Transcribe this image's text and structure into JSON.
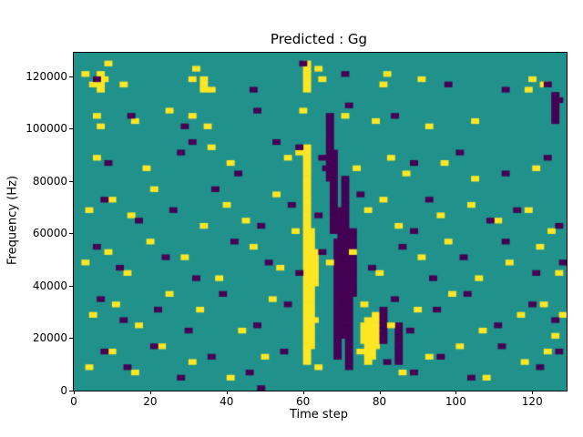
{
  "chart_data": {
    "type": "heatmap",
    "title": "Predicted : Gg",
    "xlabel": "Time step",
    "ylabel": "Frequency (Hz)",
    "xlim": [
      0,
      129
    ],
    "ylim": [
      0,
      129000
    ],
    "x_ticks": [
      0,
      20,
      40,
      60,
      80,
      100,
      120
    ],
    "y_ticks": [
      0,
      20000,
      40000,
      60000,
      80000,
      100000,
      120000
    ],
    "grid": {
      "time_steps": 128,
      "freq_bins": 64,
      "bin_hz": 2000
    },
    "legend": "none",
    "colors": {
      "background": "#21918c",
      "high": "#fde725",
      "low": "#440154"
    },
    "cell": {
      "dx": 2,
      "dy": 2000
    },
    "yellow_runs": [
      [
        60,
        5,
        46
      ],
      [
        61,
        8,
        30
      ],
      [
        60,
        57,
        62
      ],
      [
        62,
        20,
        26
      ],
      [
        75,
        9,
        12
      ],
      [
        76,
        5,
        13
      ],
      [
        77,
        6,
        12
      ],
      [
        78,
        8,
        14
      ],
      [
        33,
        57,
        59
      ],
      [
        6,
        57,
        60
      ]
    ],
    "purple_runs": [
      [
        68,
        6,
        28
      ],
      [
        69,
        10,
        34
      ],
      [
        70,
        15,
        40
      ],
      [
        67,
        30,
        45
      ],
      [
        71,
        4,
        20
      ],
      [
        72,
        18,
        30
      ],
      [
        66,
        40,
        52
      ],
      [
        84,
        5,
        12
      ],
      [
        80,
        9,
        15
      ],
      [
        125,
        52,
        56
      ]
    ],
    "yellow_cells": [
      [
        2,
        60
      ],
      [
        4,
        58
      ],
      [
        7,
        59
      ],
      [
        8,
        62
      ],
      [
        12,
        58
      ],
      [
        30,
        59
      ],
      [
        31,
        61
      ],
      [
        35,
        57
      ],
      [
        63,
        61
      ],
      [
        64,
        59
      ],
      [
        80,
        58
      ],
      [
        81,
        60
      ],
      [
        90,
        59
      ],
      [
        118,
        57
      ],
      [
        119,
        59
      ],
      [
        122,
        58
      ],
      [
        5,
        52
      ],
      [
        6,
        50
      ],
      [
        15,
        51
      ],
      [
        24,
        53
      ],
      [
        30,
        52
      ],
      [
        34,
        50
      ],
      [
        59,
        53
      ],
      [
        70,
        52
      ],
      [
        78,
        51
      ],
      [
        92,
        50
      ],
      [
        104,
        51
      ],
      [
        5,
        44
      ],
      [
        18,
        42
      ],
      [
        35,
        46
      ],
      [
        40,
        43
      ],
      [
        55,
        44
      ],
      [
        58,
        45
      ],
      [
        73,
        42
      ],
      [
        82,
        44
      ],
      [
        86,
        41
      ],
      [
        96,
        43
      ],
      [
        104,
        40
      ],
      [
        120,
        42
      ],
      [
        3,
        34
      ],
      [
        9,
        36
      ],
      [
        14,
        33
      ],
      [
        20,
        38
      ],
      [
        33,
        31
      ],
      [
        39,
        35
      ],
      [
        44,
        32
      ],
      [
        52,
        37
      ],
      [
        57,
        30
      ],
      [
        76,
        34
      ],
      [
        80,
        36
      ],
      [
        84,
        31
      ],
      [
        95,
        33
      ],
      [
        103,
        35
      ],
      [
        110,
        32
      ],
      [
        118,
        34
      ],
      [
        124,
        30
      ],
      [
        2,
        24
      ],
      [
        8,
        26
      ],
      [
        13,
        22
      ],
      [
        19,
        28
      ],
      [
        28,
        25
      ],
      [
        37,
        21
      ],
      [
        46,
        27
      ],
      [
        53,
        23
      ],
      [
        66,
        24
      ],
      [
        72,
        26
      ],
      [
        79,
        22
      ],
      [
        90,
        25
      ],
      [
        97,
        28
      ],
      [
        105,
        21
      ],
      [
        113,
        24
      ],
      [
        121,
        27
      ],
      [
        126,
        22
      ],
      [
        4,
        14
      ],
      [
        10,
        16
      ],
      [
        16,
        12
      ],
      [
        24,
        18
      ],
      [
        32,
        15
      ],
      [
        43,
        11
      ],
      [
        51,
        17
      ],
      [
        62,
        13
      ],
      [
        75,
        16
      ],
      [
        82,
        12
      ],
      [
        89,
        15
      ],
      [
        98,
        18
      ],
      [
        106,
        11
      ],
      [
        116,
        14
      ],
      [
        122,
        16
      ],
      [
        125,
        10
      ],
      [
        127,
        14
      ],
      [
        3,
        4
      ],
      [
        9,
        7
      ],
      [
        15,
        3
      ],
      [
        22,
        8
      ],
      [
        30,
        5
      ],
      [
        40,
        2
      ],
      [
        49,
        6
      ],
      [
        63,
        4
      ],
      [
        74,
        7
      ],
      [
        85,
        3
      ],
      [
        92,
        6
      ],
      [
        100,
        8
      ],
      [
        107,
        2
      ],
      [
        117,
        5
      ],
      [
        123,
        7
      ]
    ],
    "purple_cells": [
      [
        5,
        59
      ],
      [
        59,
        62
      ],
      [
        70,
        60
      ],
      [
        97,
        58
      ],
      [
        112,
        57
      ],
      [
        123,
        58
      ],
      [
        126,
        55
      ],
      [
        14,
        52
      ],
      [
        28,
        50
      ],
      [
        47,
        53
      ],
      [
        71,
        54
      ],
      [
        83,
        52
      ],
      [
        125,
        51
      ],
      [
        8,
        43
      ],
      [
        27,
        45
      ],
      [
        42,
        41
      ],
      [
        58,
        46
      ],
      [
        64,
        44
      ],
      [
        65,
        42
      ],
      [
        88,
        43
      ],
      [
        100,
        45
      ],
      [
        112,
        41
      ],
      [
        123,
        44
      ],
      [
        7,
        36
      ],
      [
        16,
        32
      ],
      [
        25,
        34
      ],
      [
        36,
        38
      ],
      [
        48,
        31
      ],
      [
        56,
        35
      ],
      [
        63,
        33
      ],
      [
        74,
        37
      ],
      [
        88,
        30
      ],
      [
        92,
        36
      ],
      [
        108,
        32
      ],
      [
        115,
        34
      ],
      [
        126,
        31
      ],
      [
        30,
        47
      ],
      [
        52,
        47
      ],
      [
        46,
        57
      ],
      [
        5,
        27
      ],
      [
        11,
        23
      ],
      [
        23,
        25
      ],
      [
        31,
        21
      ],
      [
        41,
        28
      ],
      [
        50,
        24
      ],
      [
        58,
        22
      ],
      [
        64,
        26
      ],
      [
        77,
        23
      ],
      [
        85,
        27
      ],
      [
        93,
        21
      ],
      [
        101,
        25
      ],
      [
        112,
        28
      ],
      [
        120,
        22
      ],
      [
        127,
        24
      ],
      [
        6,
        17
      ],
      [
        12,
        13
      ],
      [
        21,
        15
      ],
      [
        29,
        11
      ],
      [
        38,
        18
      ],
      [
        47,
        12
      ],
      [
        55,
        16
      ],
      [
        83,
        17
      ],
      [
        87,
        11
      ],
      [
        94,
        15
      ],
      [
        102,
        18
      ],
      [
        110,
        12
      ],
      [
        119,
        16
      ],
      [
        125,
        13
      ],
      [
        7,
        7
      ],
      [
        13,
        4
      ],
      [
        20,
        8
      ],
      [
        27,
        2
      ],
      [
        35,
        6
      ],
      [
        45,
        3
      ],
      [
        48,
        0
      ],
      [
        54,
        7
      ],
      [
        81,
        5
      ],
      [
        88,
        3
      ],
      [
        95,
        6
      ],
      [
        103,
        2
      ],
      [
        111,
        8
      ],
      [
        121,
        4
      ],
      [
        126,
        7
      ]
    ]
  }
}
